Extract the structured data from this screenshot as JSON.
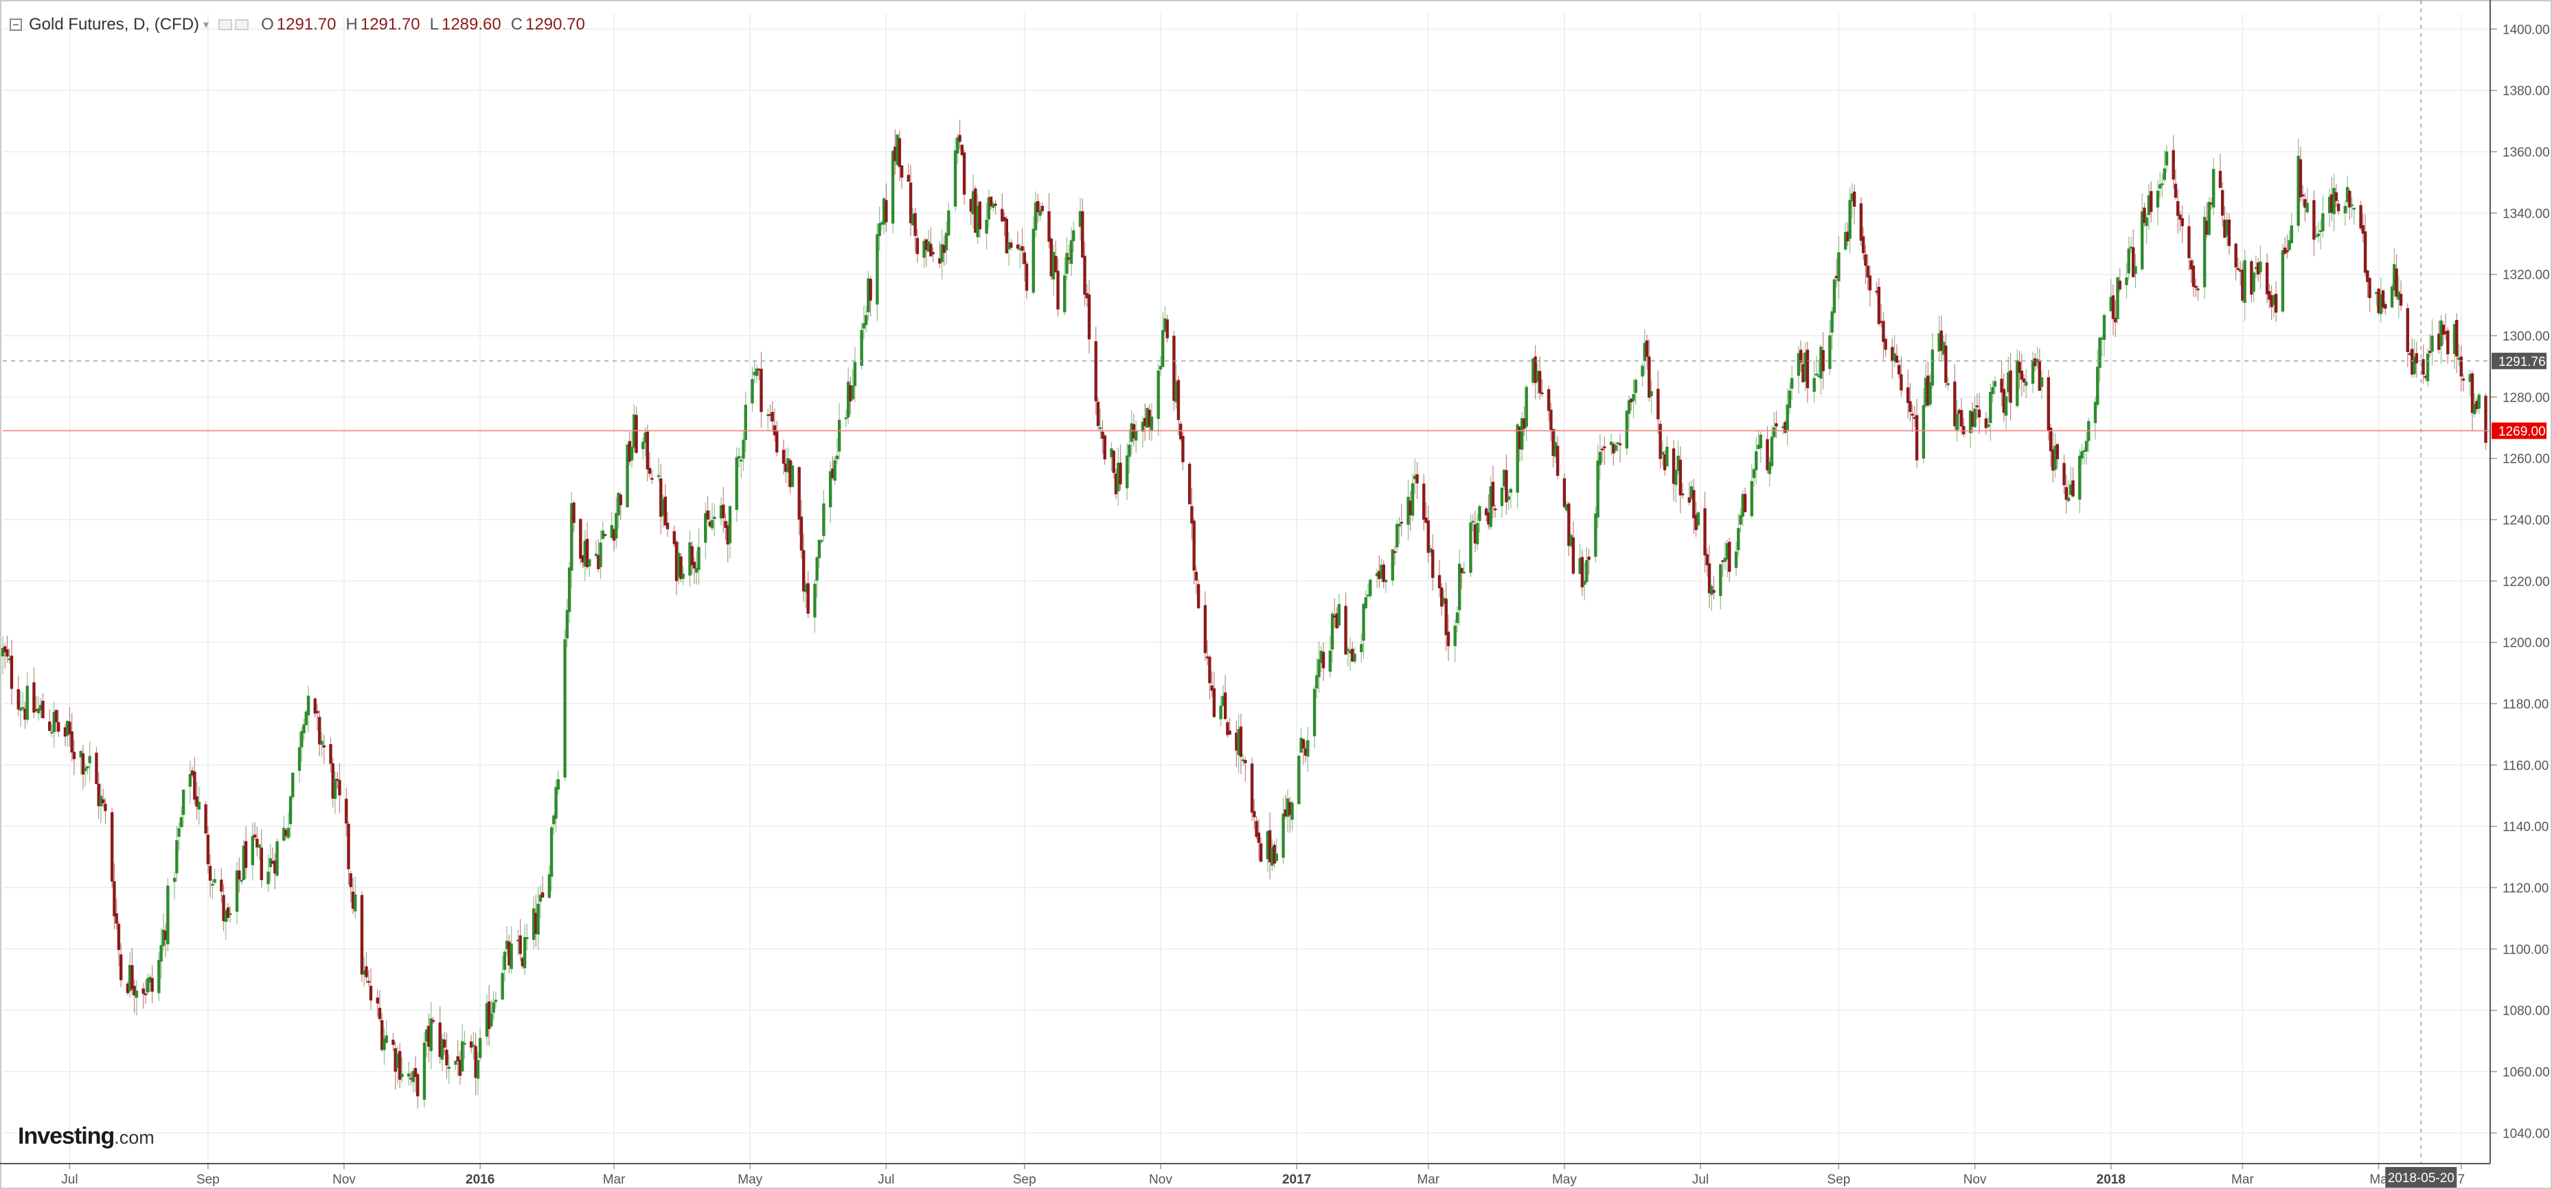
{
  "header": {
    "symbol_title": "Gold Futures, D, (CFD)",
    "ohlc": {
      "open_label": "O",
      "open": "1291.70",
      "high_label": "H",
      "high": "1291.70",
      "low_label": "L",
      "low": "1289.60",
      "close_label": "C",
      "close": "1290.70"
    }
  },
  "branding": {
    "name": "Investing",
    "domain": ".com"
  },
  "colors": {
    "up": "#2e8b2e",
    "down": "#8b1a1a",
    "grid": "#ececec",
    "current_price_line": "#f08080",
    "current_price_badge": "#e60000",
    "crosshair_badge": "#555555",
    "axis_text": "#555555"
  },
  "icons": [
    "collapse-icon",
    "caret-down-icon"
  ],
  "chart_data": {
    "type": "candlestick",
    "title": "Gold Futures, D, (CFD)",
    "xlabel": "",
    "ylabel": "",
    "ylim": [
      1030,
      1405
    ],
    "y_ticks": [
      "1040.00",
      "1060.00",
      "1080.00",
      "1100.00",
      "1120.00",
      "1140.00",
      "1160.00",
      "1180.00",
      "1200.00",
      "1220.00",
      "1240.00",
      "1260.00",
      "1280.00",
      "1300.00",
      "1320.00",
      "1340.00",
      "1360.00",
      "1380.00",
      "1400.00"
    ],
    "x_ticks": [
      {
        "label": "Jul",
        "date": "2015-07-01",
        "bold": false
      },
      {
        "label": "Sep",
        "date": "2015-09-01",
        "bold": false
      },
      {
        "label": "Nov",
        "date": "2015-11-01",
        "bold": false
      },
      {
        "label": "2016",
        "date": "2016-01-01",
        "bold": true
      },
      {
        "label": "Mar",
        "date": "2016-03-01",
        "bold": false
      },
      {
        "label": "May",
        "date": "2016-05-01",
        "bold": false
      },
      {
        "label": "Jul",
        "date": "2016-07-01",
        "bold": false
      },
      {
        "label": "Sep",
        "date": "2016-09-01",
        "bold": false
      },
      {
        "label": "Nov",
        "date": "2016-11-01",
        "bold": false
      },
      {
        "label": "2017",
        "date": "2017-01-01",
        "bold": true
      },
      {
        "label": "Mar",
        "date": "2017-03-01",
        "bold": false
      },
      {
        "label": "May",
        "date": "2017-05-01",
        "bold": false
      },
      {
        "label": "Jul",
        "date": "2017-07-01",
        "bold": false
      },
      {
        "label": "Sep",
        "date": "2017-09-01",
        "bold": false
      },
      {
        "label": "Nov",
        "date": "2017-11-01",
        "bold": false
      },
      {
        "label": "2018",
        "date": "2018-01-01",
        "bold": true
      },
      {
        "label": "Mar",
        "date": "2018-03-01",
        "bold": false
      },
      {
        "label": "Ma",
        "date": "2018-05-01",
        "bold": false
      },
      {
        "label": "7",
        "date": "2018-06-07",
        "bold": false
      }
    ],
    "date_range": [
      "2015-06-01",
      "2018-06-20"
    ],
    "current_price": {
      "label": "1269.00",
      "value": 1269.0
    },
    "crosshair": {
      "date_label": "2018-05-20",
      "date": "2018-05-20",
      "price_label": "1291.76",
      "price": 1291.76
    },
    "close_path": [
      [
        "2015-06-01",
        1196
      ],
      [
        "2015-06-10",
        1180
      ],
      [
        "2015-06-20",
        1176
      ],
      [
        "2015-07-01",
        1168
      ],
      [
        "2015-07-10",
        1160
      ],
      [
        "2015-07-18",
        1140
      ],
      [
        "2015-07-24",
        1092
      ],
      [
        "2015-08-01",
        1090
      ],
      [
        "2015-08-08",
        1086
      ],
      [
        "2015-08-14",
        1114
      ],
      [
        "2015-08-24",
        1160
      ],
      [
        "2015-08-31",
        1134
      ],
      [
        "2015-09-10",
        1106
      ],
      [
        "2015-09-18",
        1132
      ],
      [
        "2015-09-28",
        1126
      ],
      [
        "2015-10-06",
        1140
      ],
      [
        "2015-10-14",
        1180
      ],
      [
        "2015-10-22",
        1168
      ],
      [
        "2015-11-01",
        1140
      ],
      [
        "2015-11-10",
        1090
      ],
      [
        "2015-11-18",
        1074
      ],
      [
        "2015-11-27",
        1062
      ],
      [
        "2015-12-03",
        1054
      ],
      [
        "2015-12-10",
        1074
      ],
      [
        "2015-12-18",
        1064
      ],
      [
        "2015-12-31",
        1062
      ],
      [
        "2016-01-10",
        1096
      ],
      [
        "2016-01-20",
        1098
      ],
      [
        "2016-01-30",
        1116
      ],
      [
        "2016-02-05",
        1162
      ],
      [
        "2016-02-11",
        1240
      ],
      [
        "2016-02-20",
        1226
      ],
      [
        "2016-03-01",
        1240
      ],
      [
        "2016-03-10",
        1268
      ],
      [
        "2016-03-18",
        1258
      ],
      [
        "2016-03-28",
        1226
      ],
      [
        "2016-04-06",
        1230
      ],
      [
        "2016-04-15",
        1240
      ],
      [
        "2016-04-22",
        1238
      ],
      [
        "2016-05-02",
        1292
      ],
      [
        "2016-05-10",
        1272
      ],
      [
        "2016-05-20",
        1252
      ],
      [
        "2016-05-27",
        1210
      ],
      [
        "2016-06-03",
        1244
      ],
      [
        "2016-06-10",
        1266
      ],
      [
        "2016-06-17",
        1290
      ],
      [
        "2016-06-24",
        1316
      ],
      [
        "2016-07-01",
        1342
      ],
      [
        "2016-07-06",
        1365
      ],
      [
        "2016-07-14",
        1332
      ],
      [
        "2016-07-25",
        1322
      ],
      [
        "2016-08-02",
        1360
      ],
      [
        "2016-08-10",
        1340
      ],
      [
        "2016-08-19",
        1344
      ],
      [
        "2016-08-26",
        1324
      ],
      [
        "2016-09-02",
        1320
      ],
      [
        "2016-09-07",
        1346
      ],
      [
        "2016-09-16",
        1314
      ],
      [
        "2016-09-26",
        1336
      ],
      [
        "2016-10-04",
        1266
      ],
      [
        "2016-10-12",
        1254
      ],
      [
        "2016-10-20",
        1266
      ],
      [
        "2016-10-28",
        1276
      ],
      [
        "2016-11-03",
        1302
      ],
      [
        "2016-11-09",
        1274
      ],
      [
        "2016-11-16",
        1226
      ],
      [
        "2016-11-25",
        1182
      ],
      [
        "2016-12-06",
        1168
      ],
      [
        "2016-12-15",
        1130
      ],
      [
        "2016-12-22",
        1134
      ],
      [
        "2016-12-30",
        1150
      ],
      [
        "2017-01-10",
        1186
      ],
      [
        "2017-01-20",
        1210
      ],
      [
        "2017-01-27",
        1190
      ],
      [
        "2017-02-03",
        1220
      ],
      [
        "2017-02-14",
        1230
      ],
      [
        "2017-02-24",
        1256
      ],
      [
        "2017-03-03",
        1226
      ],
      [
        "2017-03-10",
        1202
      ],
      [
        "2017-03-20",
        1236
      ],
      [
        "2017-03-31",
        1246
      ],
      [
        "2017-04-07",
        1254
      ],
      [
        "2017-04-17",
        1288
      ],
      [
        "2017-04-26",
        1266
      ],
      [
        "2017-05-05",
        1226
      ],
      [
        "2017-05-10",
        1222
      ],
      [
        "2017-05-17",
        1258
      ],
      [
        "2017-05-26",
        1268
      ],
      [
        "2017-06-06",
        1294
      ],
      [
        "2017-06-14",
        1262
      ],
      [
        "2017-06-23",
        1254
      ],
      [
        "2017-06-30",
        1240
      ],
      [
        "2017-07-07",
        1214
      ],
      [
        "2017-07-17",
        1234
      ],
      [
        "2017-07-26",
        1260
      ],
      [
        "2017-08-04",
        1264
      ],
      [
        "2017-08-14",
        1288
      ],
      [
        "2017-08-24",
        1290
      ],
      [
        "2017-09-01",
        1324
      ],
      [
        "2017-09-08",
        1346
      ],
      [
        "2017-09-18",
        1310
      ],
      [
        "2017-09-28",
        1282
      ],
      [
        "2017-10-06",
        1266
      ],
      [
        "2017-10-16",
        1300
      ],
      [
        "2017-10-26",
        1266
      ],
      [
        "2017-11-06",
        1276
      ],
      [
        "2017-11-15",
        1282
      ],
      [
        "2017-11-27",
        1294
      ],
      [
        "2017-12-05",
        1266
      ],
      [
        "2017-12-12",
        1242
      ],
      [
        "2017-12-20",
        1264
      ],
      [
        "2017-12-29",
        1302
      ],
      [
        "2018-01-08",
        1320
      ],
      [
        "2018-01-16",
        1336
      ],
      [
        "2018-01-25",
        1358
      ],
      [
        "2018-02-02",
        1334
      ],
      [
        "2018-02-08",
        1314
      ],
      [
        "2018-02-15",
        1350
      ],
      [
        "2018-02-26",
        1328
      ],
      [
        "2018-03-01",
        1318
      ],
      [
        "2018-03-09",
        1318
      ],
      [
        "2018-03-16",
        1312
      ],
      [
        "2018-03-26",
        1352
      ],
      [
        "2018-04-03",
        1332
      ],
      [
        "2018-04-11",
        1344
      ],
      [
        "2018-04-19",
        1342
      ],
      [
        "2018-04-27",
        1318
      ],
      [
        "2018-05-03",
        1312
      ],
      [
        "2018-05-10",
        1320
      ],
      [
        "2018-05-15",
        1290
      ],
      [
        "2018-05-22",
        1292
      ],
      [
        "2018-05-29",
        1300
      ],
      [
        "2018-06-05",
        1298
      ],
      [
        "2018-06-12",
        1280
      ],
      [
        "2018-06-18",
        1269
      ]
    ]
  }
}
